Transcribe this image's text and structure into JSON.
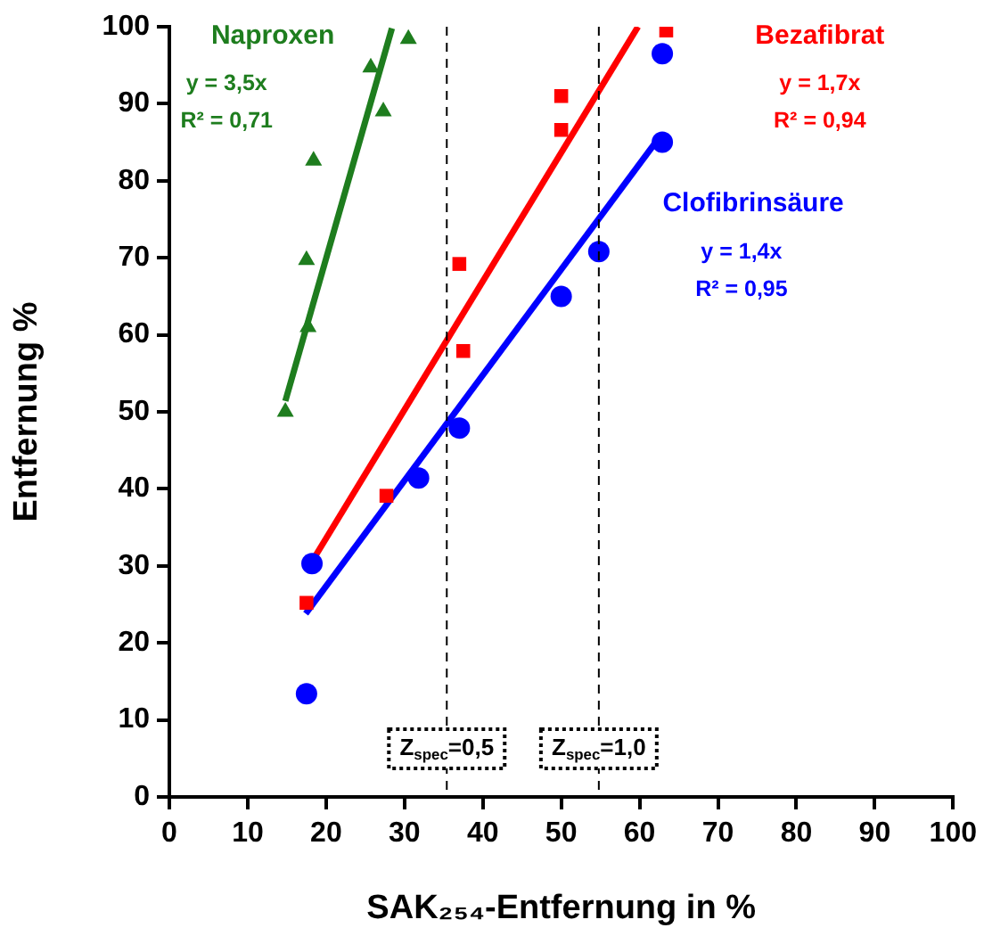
{
  "chart_data": {
    "type": "scatter",
    "xlabel": "SAK₂₅₄-Entfernung in %",
    "ylabel": "Entfernung %",
    "xlim": [
      0,
      100
    ],
    "ylim": [
      0,
      100
    ],
    "xticks": [
      0,
      10,
      20,
      30,
      40,
      50,
      60,
      70,
      80,
      90,
      100
    ],
    "yticks": [
      0,
      10,
      20,
      30,
      40,
      50,
      60,
      70,
      80,
      90,
      100
    ],
    "grid": false,
    "legend": false,
    "series": [
      {
        "name": "Naproxen",
        "color": "#1e7d1e",
        "marker": "triangle",
        "x": [
          14.8,
          17.7,
          17.5,
          18.4,
          27.3,
          25.7,
          30.5
        ],
        "values": [
          50,
          61,
          69.7,
          82.6,
          89,
          94.7,
          98.4
        ]
      },
      {
        "name": "Bezafibrat",
        "color": "#ff0000",
        "marker": "square",
        "x": [
          17.5,
          27.7,
          37.5,
          37,
          50,
          50,
          63.4
        ],
        "values": [
          25.2,
          39.1,
          57.9,
          69.2,
          86.6,
          91,
          99.5
        ]
      },
      {
        "name": "Clofibrinsäure",
        "color": "#0000ff",
        "marker": "circle",
        "x": [
          17.5,
          18.2,
          31.8,
          37,
          50,
          54.8,
          62.9,
          62.9
        ],
        "values": [
          13.4,
          30.3,
          41.4,
          47.9,
          65,
          70.8,
          85,
          96.5
        ]
      },
      {
        "type": "line",
        "color": "#1e7d1e",
        "x": [
          14.8,
          28.4
        ],
        "values": [
          51.4,
          99.8
        ]
      },
      {
        "type": "line",
        "color": "#ff0000",
        "x": [
          17.5,
          59.8
        ],
        "values": [
          29.4,
          100
        ]
      },
      {
        "type": "line",
        "color": "#0000ff",
        "x": [
          17.4,
          62.7
        ],
        "values": [
          23.8,
          85.9
        ]
      }
    ],
    "annotations": [
      "y = 3,5x",
      "R² = 0,71",
      "y = 1,7x",
      "R² = 0,94",
      "y = 1,4x",
      "R² = 0,95",
      "Z$_{spec}$=0,5",
      "Z$_{spec}$=1,0"
    ],
    "ref_lines": [
      {
        "axis": "x",
        "value": 35.4,
        "color": "#000000",
        "line_style": "dashed"
      },
      {
        "axis": "x",
        "value": 54.8,
        "color": "#000000",
        "line_style": "dashed"
      }
    ]
  }
}
